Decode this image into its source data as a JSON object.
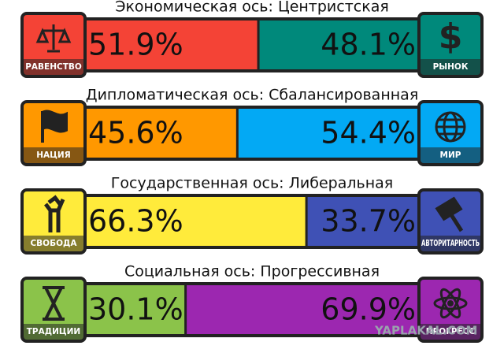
{
  "axes": [
    {
      "title": "Экономическая ось: Центристская",
      "left_label": "РАВЕНСТВО",
      "right_label": "РЫНОК",
      "values": [
        51.9,
        48.1
      ],
      "value_labels": [
        "51.9%",
        "48.1%"
      ],
      "colors": [
        "#f44336",
        "#00897b"
      ]
    },
    {
      "title": "Дипломатическая ось: Сбалансированная",
      "left_label": "НАЦИЯ",
      "right_label": "МИР",
      "values": [
        45.6,
        54.4
      ],
      "value_labels": [
        "45.6%",
        "54.4%"
      ],
      "colors": [
        "#ff9800",
        "#03a9f4"
      ]
    },
    {
      "title": "Государственная ось: Либеральная",
      "left_label": "СВОБОДА",
      "right_label": "АВТОРИТАРНОСТЬ",
      "values": [
        66.3,
        33.7
      ],
      "value_labels": [
        "66.3%",
        "33.7%"
      ],
      "colors": [
        "#ffeb3b",
        "#3f51b5"
      ]
    },
    {
      "title": "Социальная ось: Прогрессивная",
      "left_label": "ТРАДИЦИИ",
      "right_label": "ПРОГРЕСС",
      "values": [
        30.1,
        69.9
      ],
      "value_labels": [
        "30.1%",
        "69.9%"
      ],
      "colors": [
        "#8bc34a",
        "#9c27b0"
      ]
    }
  ],
  "watermark": "YAPLAKAL.COM"
}
